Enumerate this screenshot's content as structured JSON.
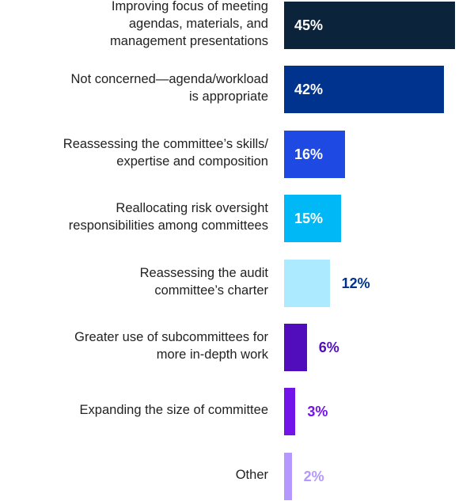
{
  "chart_data": {
    "type": "bar",
    "orientation": "horizontal",
    "categories": [
      "Improving focus of meeting agendas, materials, and management presentations",
      "Not concerned—agenda/workload is appropriate",
      "Reassessing the committee’s skills/ expertise and composition",
      "Reallocating risk oversight responsibilities among committees",
      "Reassessing the audit committee’s charter",
      "Greater use of subcommittees for more in-depth work",
      "Expanding the size of committee",
      "Other"
    ],
    "category_lines": [
      [
        "Improving focus of meeting",
        "agendas, materials, and",
        "management presentations"
      ],
      [
        "Not concerned—agenda/workload",
        "is appropriate"
      ],
      [
        "Reassessing the committee’s skills/",
        "expertise and composition"
      ],
      [
        "Reallocating risk oversight",
        "responsibilities among committees"
      ],
      [
        "Reassessing the audit",
        "committee’s charter"
      ],
      [
        "Greater use of subcommittees for",
        "more in-depth work"
      ],
      [
        "Expanding the size of committee"
      ],
      [
        "Other"
      ]
    ],
    "values": [
      45,
      42,
      16,
      15,
      12,
      6,
      3,
      2
    ],
    "value_labels": [
      "45%",
      "42%",
      "16%",
      "15%",
      "12%",
      "6%",
      "3%",
      "2%"
    ],
    "bar_colors": [
      "#0c233c",
      "#00338d",
      "#1e49e2",
      "#00b8f5",
      "#acebff",
      "#510dbc",
      "#7213ea",
      "#b497ff"
    ],
    "label_colors": [
      "#ffffff",
      "#ffffff",
      "#ffffff",
      "#ffffff",
      "#00338d",
      "#510dbc",
      "#7213ea",
      "#b497ff"
    ],
    "xlim": [
      0,
      50
    ],
    "title": "",
    "xlabel": "",
    "ylabel": "",
    "grid": false,
    "legend": "none"
  }
}
